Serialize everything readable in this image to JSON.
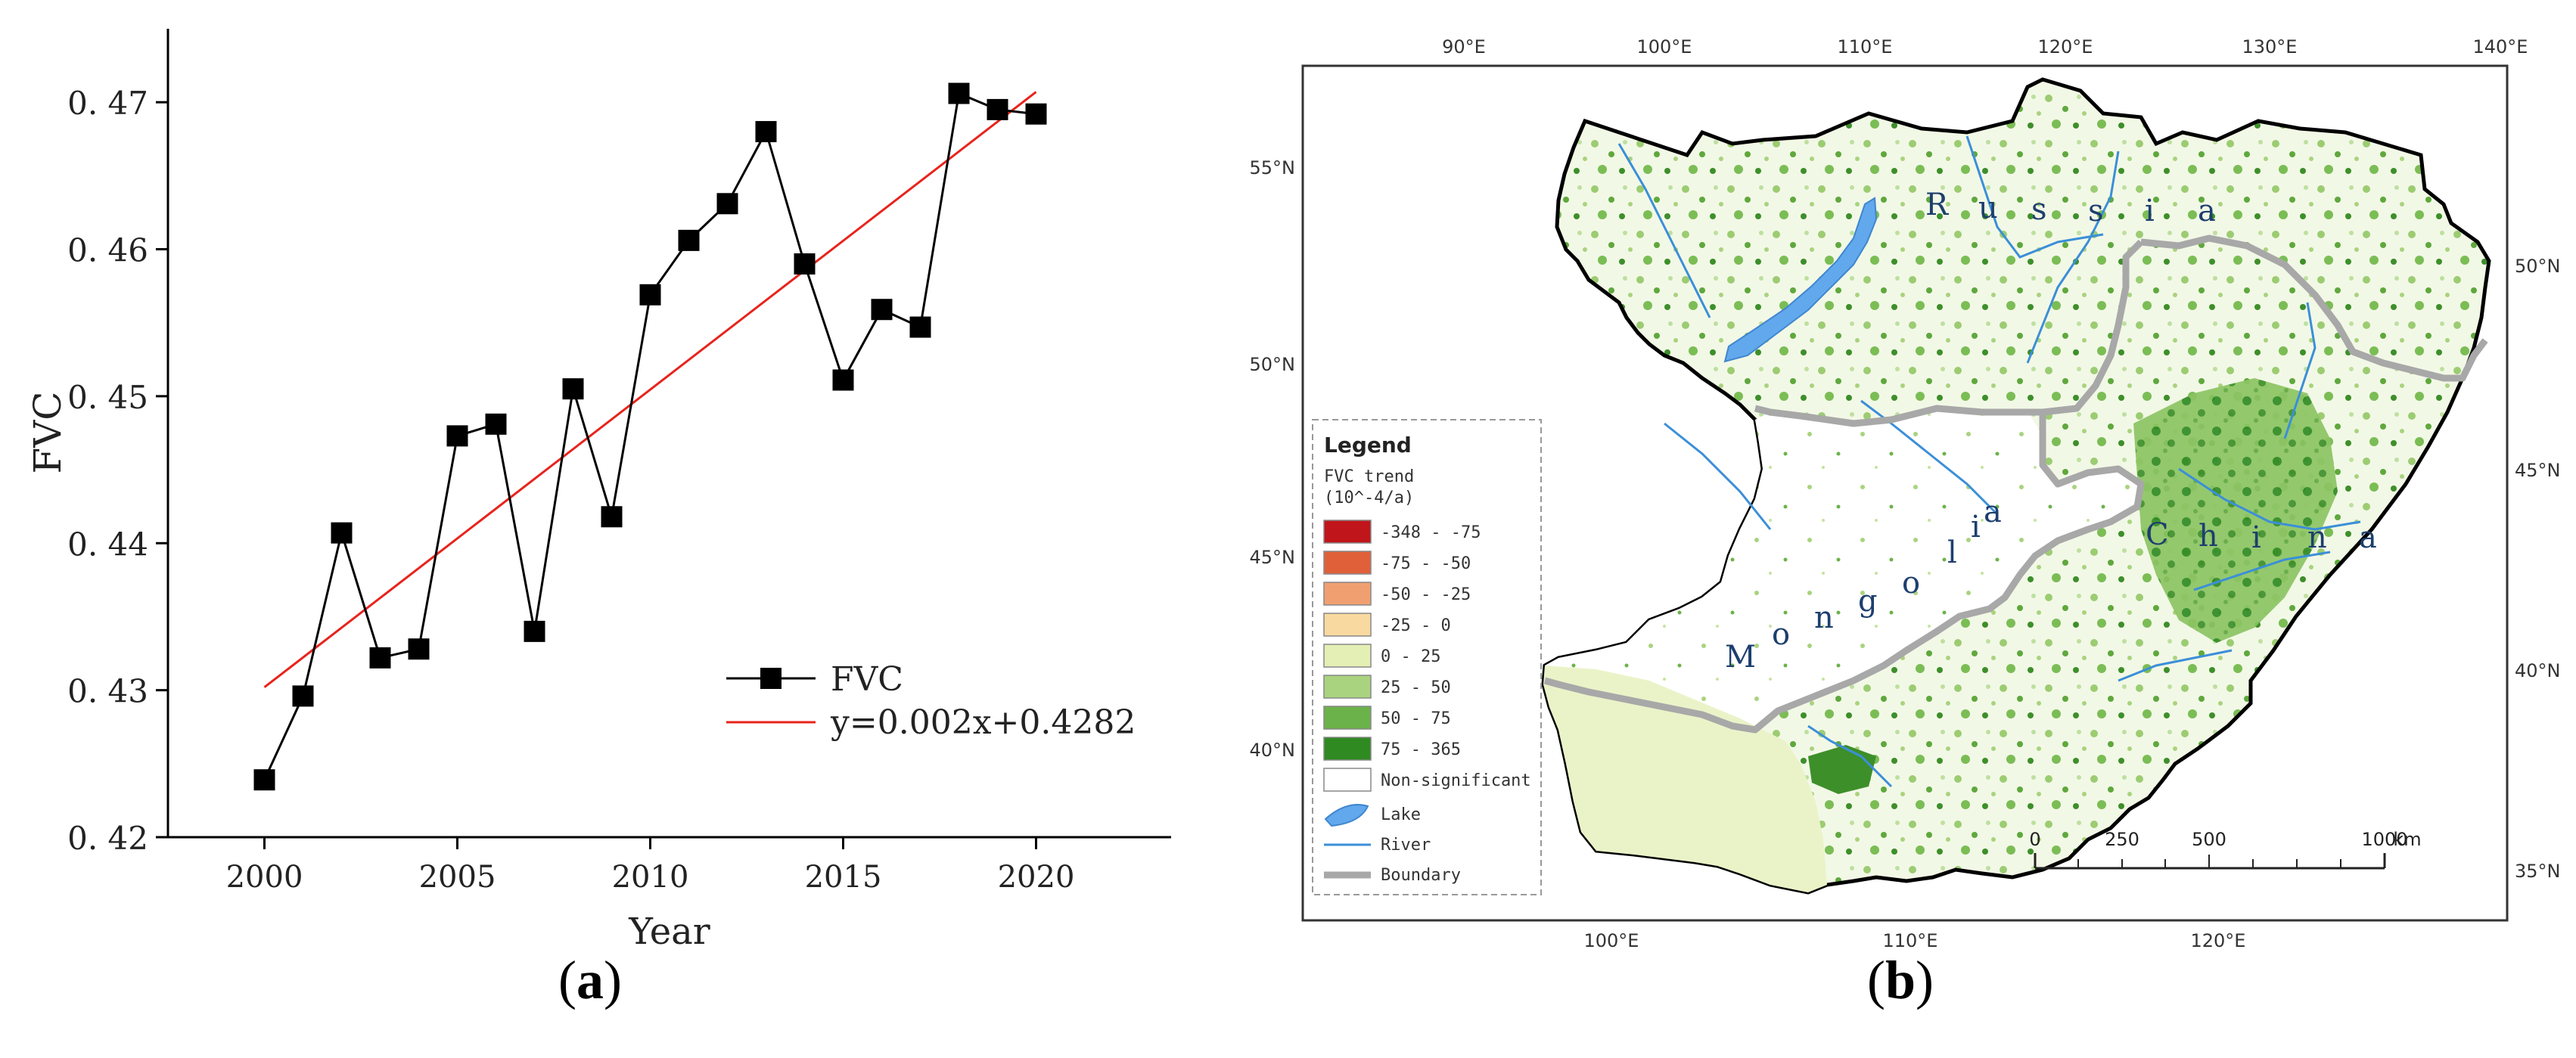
{
  "panel_a": {
    "caption_open": "(",
    "caption_letter": "a",
    "caption_close": ")"
  },
  "panel_b": {
    "caption_open": "(",
    "caption_letter": "b",
    "caption_close": ")",
    "legend": {
      "title": "Legend",
      "subtitle_line1": "FVC trend",
      "subtitle_line2": "(10^-4/a)",
      "classes": [
        {
          "label": "-348  -  -75",
          "color": "#c0151b"
        },
        {
          "label": "-75  -  -50",
          "color": "#e0603a"
        },
        {
          "label": "-50  -  -25",
          "color": "#f0a070"
        },
        {
          "label": "-25  -  0",
          "color": "#f8d9a0"
        },
        {
          "label": "0  -  25",
          "color": "#e3efb4"
        },
        {
          "label": "25  -  50",
          "color": "#a9d37e"
        },
        {
          "label": "50  -  75",
          "color": "#6cb24a"
        },
        {
          "label": "75  -  365",
          "color": "#2f8a22"
        },
        {
          "label": "Non-significant",
          "color": "#ffffff"
        }
      ],
      "lake_label": "Lake",
      "river_label": "River",
      "boundary_label": "Boundary"
    },
    "top_lon_labels": [
      "90°E",
      "100°E",
      "110°E",
      "120°E",
      "130°E",
      "140°E"
    ],
    "bottom_lon_labels": [
      "100°E",
      "110°E",
      "120°E"
    ],
    "left_lat_labels": [
      "55°N",
      "50°N",
      "45°N",
      "40°N"
    ],
    "right_lat_labels": [
      "50°N",
      "45°N",
      "40°N",
      "35°N"
    ],
    "country_labels": {
      "russia": [
        "R",
        "u",
        "s",
        "s",
        "i",
        "a"
      ],
      "china": [
        "C",
        "h",
        "i",
        "n",
        "a"
      ],
      "mongolia": [
        "M",
        "o",
        "n",
        "g",
        "o",
        "l",
        "i",
        "a"
      ]
    },
    "scale_bar": {
      "ticks": [
        "0",
        "250",
        "500",
        "1000"
      ],
      "unit": "km"
    },
    "colors": {
      "lake": "#62a8ec",
      "river": "#3b8fd8",
      "boundary": "#a8a8a8"
    }
  },
  "chart_data": {
    "type": "line",
    "title": "",
    "xlabel": "Year",
    "ylabel": "FVC",
    "xlim": [
      1997.5,
      2023.5
    ],
    "ylim": [
      0.42,
      0.475
    ],
    "x_ticks": [
      2000,
      2005,
      2010,
      2015,
      2020
    ],
    "y_ticks": [
      0.42,
      0.43,
      0.44,
      0.45,
      0.46,
      0.47
    ],
    "y_tick_labels": [
      "0. 42",
      "0. 43",
      "0. 44",
      "0. 45",
      "0. 46",
      "0. 47"
    ],
    "series": [
      {
        "name": "FVC",
        "color": "#000000",
        "marker": "square",
        "x": [
          2000,
          2001,
          2002,
          2003,
          2004,
          2005,
          2006,
          2007,
          2008,
          2009,
          2010,
          2011,
          2012,
          2013,
          2014,
          2015,
          2016,
          2017,
          2018,
          2019,
          2020
        ],
        "values": [
          0.4239,
          0.4296,
          0.4407,
          0.4322,
          0.4328,
          0.4473,
          0.4481,
          0.434,
          0.4505,
          0.4418,
          0.4569,
          0.4606,
          0.4631,
          0.468,
          0.459,
          0.4511,
          0.4559,
          0.4547,
          0.4706,
          0.4695,
          0.4692
        ]
      },
      {
        "name": "y=0.002x+0.4282",
        "color": "#e8231c",
        "type": "trend",
        "x": [
          2000,
          2020
        ],
        "values": [
          0.4302,
          0.4707
        ]
      }
    ],
    "legend_position": "bottom-right"
  }
}
